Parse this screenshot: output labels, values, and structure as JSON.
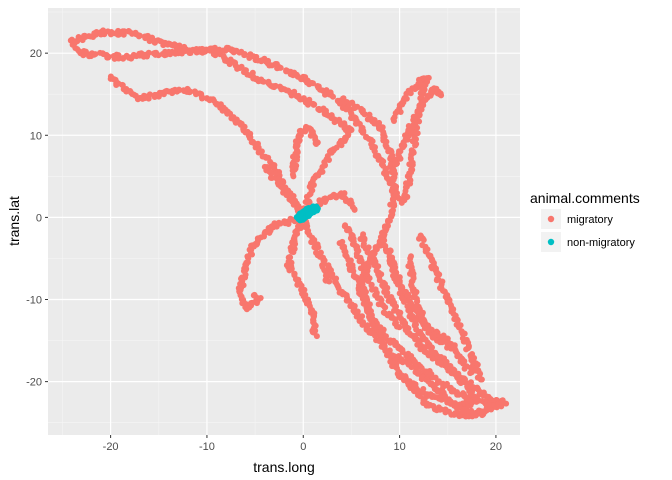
{
  "chart_data": {
    "type": "scatter",
    "xlabel": "trans.long",
    "ylabel": "trans.lat",
    "xlim": [
      -26.5,
      22.5
    ],
    "ylim": [
      -26.5,
      25.5
    ],
    "x_ticks": [
      -20,
      -10,
      0,
      10,
      20
    ],
    "y_ticks": [
      -20,
      -10,
      0,
      10,
      20
    ],
    "x_tick_labels": [
      "-20",
      "-10",
      "0",
      "10",
      "20"
    ],
    "y_tick_labels": [
      "-20",
      "-10",
      "0",
      "10",
      "20"
    ],
    "grid": true,
    "background": "#ebebeb",
    "legend": {
      "title": "animal.comments",
      "position": "right",
      "entries": [
        {
          "label": "migratory",
          "color": "#F8766D"
        },
        {
          "label": "non-migratory",
          "color": "#00BFC4"
        }
      ]
    },
    "series": [
      {
        "name": "migratory",
        "color": "#F8766D",
        "tracks": [
          [
            [
              0,
              0
            ],
            [
              -1.5,
              3
            ],
            [
              -3,
              6
            ],
            [
              -5,
              9
            ],
            [
              -7,
              12
            ],
            [
              -9,
              14
            ],
            [
              -12,
              15.5
            ],
            [
              -15,
              15
            ],
            [
              -17,
              14.5
            ],
            [
              -19.5,
              16.5
            ],
            [
              -20,
              17
            ]
          ],
          [
            [
              0,
              0
            ],
            [
              1,
              4
            ],
            [
              3,
              8
            ],
            [
              5,
              10.5
            ],
            [
              2,
              13
            ],
            [
              -1,
              15
            ],
            [
              -5,
              17
            ],
            [
              -9,
              20
            ],
            [
              -14,
              21
            ],
            [
              -18,
              22.5
            ],
            [
              -21,
              22.5
            ],
            [
              -24,
              21.5
            ],
            [
              -23,
              20
            ],
            [
              -19,
              19.5
            ],
            [
              -14,
              20
            ],
            [
              -8,
              20.5
            ],
            [
              -4,
              19
            ],
            [
              0,
              17
            ],
            [
              4,
              14
            ],
            [
              6,
              11
            ],
            [
              8,
              7
            ],
            [
              10,
              2
            ]
          ],
          [
            [
              -4,
              6.2
            ],
            [
              -2.5,
              4
            ],
            [
              -1,
              2
            ],
            [
              0,
              0
            ]
          ],
          [
            [
              -1,
              5
            ],
            [
              -0.8,
              8
            ],
            [
              -0.5,
              10
            ],
            [
              0.5,
              11
            ],
            [
              1.5,
              9
            ]
          ],
          [
            [
              0,
              0
            ],
            [
              2,
              2
            ],
            [
              4,
              3
            ],
            [
              5.5,
              1
            ]
          ],
          [
            [
              0,
              0
            ],
            [
              -3,
              -1
            ],
            [
              -5,
              -3
            ],
            [
              -6,
              -6
            ],
            [
              -6.5,
              -9
            ],
            [
              -6,
              -11
            ],
            [
              -4.5,
              -10
            ],
            [
              -5,
              -9.5
            ]
          ],
          [
            [
              0,
              0
            ],
            [
              -1,
              -3
            ],
            [
              -1.5,
              -6
            ],
            [
              0,
              -9
            ],
            [
              1,
              -12
            ],
            [
              1.2,
              -14.5
            ]
          ],
          [
            [
              0,
              0
            ],
            [
              1,
              -3
            ],
            [
              2,
              -5
            ],
            [
              2.5,
              -8
            ]
          ],
          [
            [
              4,
              -3
            ],
            [
              5,
              -6
            ],
            [
              6,
              -9
            ],
            [
              7,
              -12
            ],
            [
              9,
              -15
            ],
            [
              11,
              -17
            ],
            [
              14,
              -20
            ],
            [
              17,
              -22
            ],
            [
              19,
              -22.5
            ],
            [
              20.5,
              -22.5
            ],
            [
              19,
              -23.5
            ],
            [
              16,
              -24
            ],
            [
              13,
              -23
            ],
            [
              10,
              -19
            ],
            [
              8,
              -15
            ],
            [
              7,
              -12
            ],
            [
              6,
              -8
            ],
            [
              7,
              -5
            ],
            [
              8,
              -3
            ],
            [
              9,
              0
            ],
            [
              9.5,
              4
            ],
            [
              9,
              8
            ],
            [
              8,
              11
            ],
            [
              6,
              13
            ],
            [
              4,
              14.5
            ]
          ],
          [
            [
              6,
              -2
            ],
            [
              7.5,
              -6
            ],
            [
              9,
              -10
            ],
            [
              10.5,
              -13
            ],
            [
              12.5,
              -16
            ],
            [
              14.5,
              -18
            ],
            [
              16.5,
              -20
            ],
            [
              18,
              -22
            ],
            [
              17,
              -23
            ],
            [
              14,
              -22
            ],
            [
              12,
              -21
            ],
            [
              10,
              -19
            ]
          ],
          [
            [
              8,
              -2
            ],
            [
              9,
              -5
            ],
            [
              10,
              -8
            ],
            [
              12,
              -12
            ],
            [
              13.5,
              -14
            ],
            [
              15,
              -15
            ],
            [
              16,
              -16
            ]
          ],
          [
            [
              4.5,
              -1
            ],
            [
              5.5,
              -4
            ],
            [
              6.5,
              -7
            ],
            [
              8,
              -10.5
            ],
            [
              10,
              -13.5
            ]
          ],
          [
            [
              10.5,
              2
            ],
            [
              11,
              5
            ],
            [
              11.5,
              9
            ],
            [
              12,
              13
            ],
            [
              12.5,
              16
            ],
            [
              13,
              17
            ],
            [
              12,
              16.5
            ],
            [
              11,
              15
            ],
            [
              9.5,
              12
            ]
          ],
          [
            [
              9.5,
              6
            ],
            [
              10.5,
              9
            ],
            [
              11.5,
              12
            ],
            [
              12.5,
              14
            ],
            [
              13.5,
              15.5
            ],
            [
              14.5,
              15
            ]
          ],
          [
            [
              9,
              -4
            ],
            [
              9.5,
              -7
            ],
            [
              10.5,
              -10
            ],
            [
              12,
              -14
            ],
            [
              14,
              -17
            ],
            [
              16,
              -19
            ],
            [
              18,
              -21
            ],
            [
              20,
              -22.5
            ],
            [
              21,
              -22.5
            ]
          ],
          [
            [
              11,
              -5
            ],
            [
              11.5,
              -9
            ],
            [
              12.5,
              -13
            ],
            [
              14,
              -15
            ],
            [
              15.5,
              -16
            ],
            [
              16.5,
              -17.5
            ],
            [
              17.5,
              -19
            ]
          ],
          [
            [
              2.5,
              -6
            ],
            [
              4,
              -9
            ],
            [
              5.5,
              -11.5
            ],
            [
              7,
              -14
            ],
            [
              9,
              -16.5
            ],
            [
              11,
              -18
            ],
            [
              13,
              -20
            ],
            [
              15,
              -22
            ],
            [
              17,
              -24
            ],
            [
              18.5,
              -24
            ],
            [
              19.5,
              -23
            ],
            [
              20.5,
              -23
            ]
          ],
          [
            [
              12,
              -2
            ],
            [
              13.5,
              -6
            ],
            [
              15,
              -10
            ],
            [
              16.5,
              -14
            ],
            [
              17.5,
              -17
            ],
            [
              18.5,
              -20
            ]
          ]
        ]
      },
      {
        "name": "non-migratory",
        "color": "#00BFC4",
        "tracks": [
          [
            [
              -0.6,
              0
            ],
            [
              -0.2,
              0.5
            ],
            [
              0.3,
              0.9
            ],
            [
              0.8,
              1.2
            ],
            [
              1.3,
              1.3
            ],
            [
              1.5,
              1.0
            ],
            [
              1.0,
              0.6
            ],
            [
              0.5,
              0.2
            ],
            [
              0,
              -0.2
            ],
            [
              -0.4,
              -0.3
            ],
            [
              -0.6,
              0
            ]
          ]
        ]
      }
    ]
  }
}
